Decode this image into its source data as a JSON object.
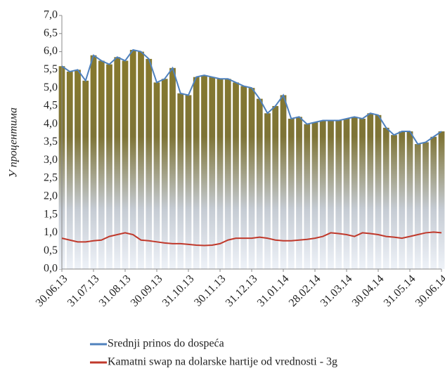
{
  "chart_data": {
    "type": "line",
    "y_label": "У процентима",
    "categories": [
      "30.06.13",
      null,
      null,
      null,
      "31.07.13",
      null,
      null,
      null,
      "31.08.13",
      null,
      null,
      null,
      "30.09.13",
      null,
      null,
      null,
      "31.10.13",
      null,
      null,
      null,
      "30.11.13",
      null,
      null,
      null,
      "31.12.13",
      null,
      null,
      null,
      "31.01.14",
      null,
      null,
      null,
      "28.02.14",
      null,
      null,
      null,
      "31.03.14",
      null,
      null,
      null,
      "30.04.14",
      null,
      null,
      null,
      "31.05.14",
      null,
      null,
      null,
      "30.06.14"
    ],
    "series": [
      {
        "name": "Srednji prinos do dospeća",
        "color": "#4f81bd",
        "values": [
          5.6,
          5.45,
          5.5,
          5.2,
          5.9,
          5.75,
          5.65,
          5.85,
          5.75,
          6.05,
          6.0,
          5.8,
          5.15,
          5.25,
          5.55,
          4.85,
          4.8,
          5.3,
          5.35,
          5.3,
          5.25,
          5.25,
          5.15,
          5.05,
          5.0,
          4.7,
          4.3,
          4.5,
          4.8,
          4.15,
          4.2,
          4.0,
          4.05,
          4.1,
          4.1,
          4.1,
          4.15,
          4.2,
          4.15,
          4.3,
          4.25,
          3.9,
          3.7,
          3.8,
          3.8,
          3.45,
          3.5,
          3.65,
          3.8
        ]
      },
      {
        "name": "Kamatni swap na dolarske hartije od vrednosti - 3g",
        "color": "#c0392b",
        "values": [
          0.85,
          0.8,
          0.75,
          0.75,
          0.78,
          0.8,
          0.9,
          0.95,
          1.0,
          0.95,
          0.8,
          0.78,
          0.75,
          0.72,
          0.7,
          0.7,
          0.68,
          0.66,
          0.65,
          0.66,
          0.7,
          0.8,
          0.85,
          0.85,
          0.85,
          0.88,
          0.85,
          0.8,
          0.78,
          0.78,
          0.8,
          0.82,
          0.85,
          0.9,
          1.0,
          0.98,
          0.95,
          0.9,
          1.0,
          0.98,
          0.95,
          0.9,
          0.88,
          0.85,
          0.9,
          0.95,
          1.0,
          1.02,
          1.0
        ]
      }
    ],
    "ylim": [
      0,
      7
    ],
    "yticks": [
      {
        "value": 0,
        "label": "0,0"
      },
      {
        "value": 0.5,
        "label": "0,5"
      },
      {
        "value": 1,
        "label": "1,0"
      },
      {
        "value": 1.5,
        "label": "1,5"
      },
      {
        "value": 2,
        "label": "2,0"
      },
      {
        "value": 2.5,
        "label": "2,5"
      },
      {
        "value": 3,
        "label": "3,0"
      },
      {
        "value": 3.5,
        "label": "3,5"
      },
      {
        "value": 4,
        "label": "4,0"
      },
      {
        "value": 4.5,
        "label": "4,5"
      },
      {
        "value": 5,
        "label": "5,0"
      },
      {
        "value": 5.5,
        "label": "5,5"
      },
      {
        "value": 6,
        "label": "6,0"
      },
      {
        "value": 6.5,
        "label": "6,5"
      },
      {
        "value": 7,
        "label": "7,0"
      }
    ],
    "grid": false
  }
}
